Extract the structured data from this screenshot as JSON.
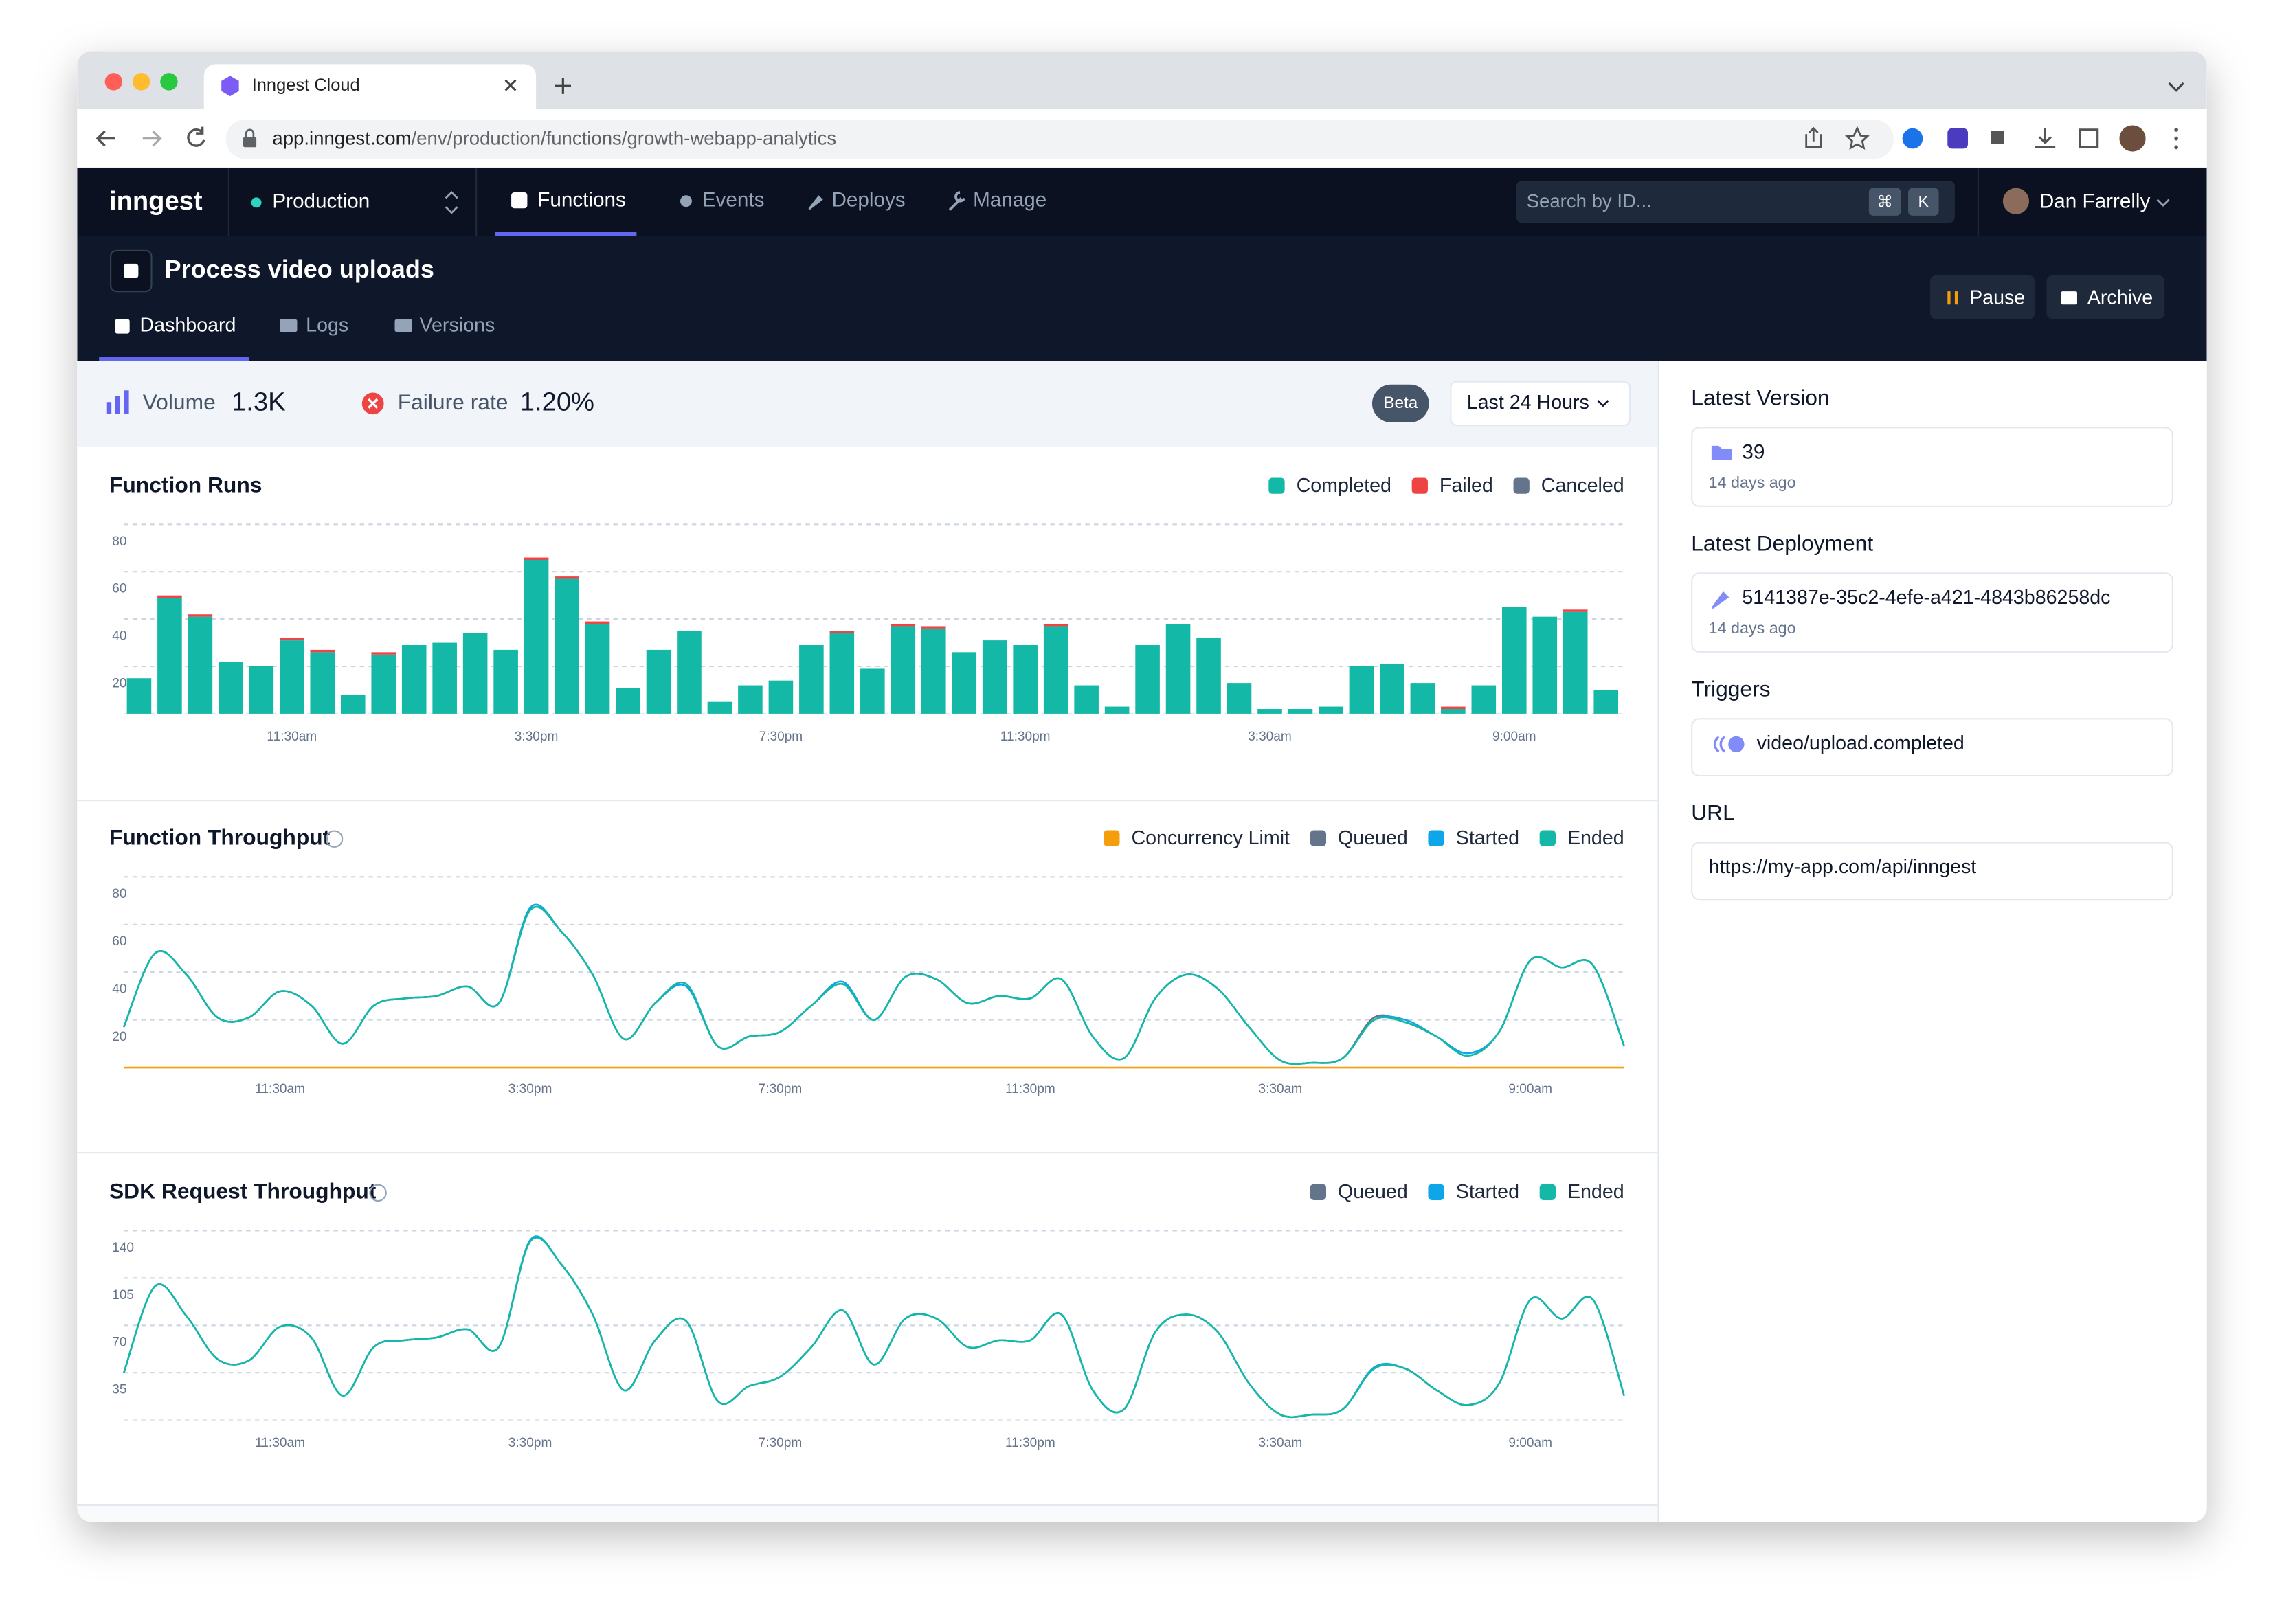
{
  "browser": {
    "tab_title": "Inngest Cloud",
    "url_host": "app.inngest.com",
    "url_path": "/env/production/functions/growth-webapp-analytics"
  },
  "nav": {
    "logo": "inngest",
    "environment": "Production",
    "items": [
      "Functions",
      "Events",
      "Deploys",
      "Manage"
    ],
    "search_placeholder": "Search by ID...",
    "shortcut": [
      "⌘",
      "K"
    ],
    "user": "Dan Farrelly"
  },
  "function": {
    "name": "Process video uploads",
    "tabs": [
      "Dashboard",
      "Logs",
      "Versions"
    ],
    "actions": [
      "Pause",
      "Archive"
    ]
  },
  "stats": {
    "volume_label": "Volume",
    "volume": "1.3K",
    "failure_label": "Failure rate",
    "failure_rate": "1.20%",
    "badge": "Beta",
    "range": "Last 24 Hours"
  },
  "sidebar": {
    "latest_version": {
      "title": "Latest Version",
      "value": "39",
      "time": "14 days ago"
    },
    "latest_deployment": {
      "title": "Latest Deployment",
      "value": "5141387e-35c2-4efe-a421-4843b86258dc",
      "time": "14 days ago"
    },
    "triggers": {
      "title": "Triggers",
      "value": "video/upload.completed"
    },
    "url": {
      "title": "URL",
      "value": "https://my-app.com/api/inngest"
    }
  },
  "chart_data": [
    {
      "type": "bar",
      "stacked": true,
      "title": "Function Runs",
      "legend": "top-right",
      "grid": true,
      "categories": [
        null,
        null,
        null,
        null,
        null,
        "11:30am",
        null,
        null,
        null,
        null,
        null,
        null,
        null,
        "3:30pm",
        null,
        null,
        null,
        null,
        null,
        null,
        null,
        "7:30pm",
        null,
        null,
        null,
        null,
        null,
        null,
        null,
        "11:30pm",
        null,
        null,
        null,
        null,
        null,
        null,
        null,
        "3:30am",
        null,
        null,
        null,
        null,
        null,
        null,
        null,
        "9:00am",
        null,
        null,
        null
      ],
      "series": [
        {
          "name": "Completed",
          "color": "#14b8a6",
          "values": [
            15,
            49,
            41,
            22,
            20,
            31,
            26,
            8,
            25,
            29,
            30,
            34,
            27,
            65,
            57,
            38,
            11,
            27,
            35,
            5,
            12,
            14,
            29,
            34,
            19,
            37,
            36,
            26,
            31,
            29,
            37,
            12,
            3,
            29,
            38,
            32,
            13,
            2,
            2,
            3,
            20,
            21,
            13,
            2,
            12,
            45,
            41,
            43,
            10
          ]
        },
        {
          "name": "Failed",
          "color": "#ef4444",
          "values": [
            0,
            1,
            1,
            0,
            0,
            1,
            1,
            0,
            1,
            0,
            0,
            0,
            0,
            1,
            1,
            1,
            0,
            0,
            0,
            0,
            0,
            0,
            0,
            1,
            0,
            1,
            1,
            0,
            0,
            0,
            1,
            0,
            0,
            0,
            0,
            0,
            0,
            0,
            0,
            0,
            0,
            0,
            0,
            1,
            0,
            0,
            0,
            1,
            0
          ]
        },
        {
          "name": "Canceled",
          "color": "#64748b",
          "values": [
            0,
            0,
            0,
            0,
            0,
            0,
            0,
            0,
            0,
            0,
            0,
            0,
            0,
            0,
            0,
            0,
            0,
            0,
            0,
            0,
            0,
            0,
            0,
            0,
            0,
            0,
            0,
            0,
            0,
            0,
            0,
            0,
            0,
            0,
            0,
            0,
            0,
            0,
            0,
            0,
            0,
            0,
            0,
            0,
            0,
            0,
            0,
            0,
            0
          ]
        }
      ],
      "ylim": [
        0,
        80
      ],
      "yticks": [
        20,
        40,
        60,
        80
      ]
    },
    {
      "type": "line",
      "title": "Function Throughput",
      "legend": "top-right",
      "grid": true,
      "categories": [
        null,
        null,
        null,
        null,
        null,
        "11:30am",
        null,
        null,
        null,
        null,
        null,
        null,
        null,
        "3:30pm",
        null,
        null,
        null,
        null,
        null,
        null,
        null,
        "7:30pm",
        null,
        null,
        null,
        null,
        null,
        null,
        null,
        "11:30pm",
        null,
        null,
        null,
        null,
        null,
        null,
        null,
        "3:30am",
        null,
        null,
        null,
        null,
        null,
        null,
        null,
        "9:00am",
        null,
        null,
        null
      ],
      "series": [
        {
          "name": "Concurrency Limit",
          "color": "#f59e0b",
          "values": [
            0,
            0,
            0,
            0,
            0,
            0,
            0,
            0,
            0,
            0,
            0,
            0,
            0,
            0,
            0,
            0,
            0,
            0,
            0,
            0,
            0,
            0,
            0,
            0,
            0,
            0,
            0,
            0,
            0,
            0,
            0,
            0,
            0,
            0,
            0,
            0,
            0,
            0,
            0,
            0,
            0,
            0,
            0,
            0,
            0,
            0,
            0,
            0,
            0
          ]
        },
        {
          "name": "Queued",
          "color": "#64748b",
          "values": [
            17,
            48,
            39,
            21,
            21,
            32,
            26,
            10,
            26,
            29,
            30,
            34,
            27,
            66,
            57,
            39,
            12,
            27,
            35,
            9,
            13,
            15,
            26,
            35,
            20,
            38,
            37,
            27,
            30,
            29,
            37,
            13,
            4,
            29,
            39,
            33,
            17,
            3,
            2,
            4,
            21,
            19,
            13,
            5,
            15,
            45,
            42,
            43,
            9
          ]
        },
        {
          "name": "Started",
          "color": "#0ea5e9",
          "values": [
            17,
            48,
            39,
            21,
            21,
            32,
            26,
            10,
            26,
            29,
            30,
            34,
            27,
            67,
            57,
            39,
            12,
            27,
            34,
            9,
            13,
            15,
            26,
            36,
            20,
            38,
            37,
            27,
            30,
            29,
            37,
            13,
            4,
            29,
            39,
            33,
            17,
            3,
            2,
            4,
            20,
            20,
            13,
            6,
            15,
            45,
            42,
            43,
            9
          ]
        },
        {
          "name": "Ended",
          "color": "#14b8a6",
          "values": [
            17,
            48,
            39,
            21,
            21,
            32,
            26,
            10,
            26,
            29,
            30,
            34,
            27,
            66,
            57,
            39,
            12,
            27,
            35,
            9,
            13,
            15,
            26,
            35,
            20,
            38,
            37,
            27,
            30,
            29,
            37,
            13,
            4,
            29,
            39,
            33,
            17,
            3,
            2,
            4,
            20,
            19,
            13,
            5,
            15,
            45,
            42,
            43,
            9
          ]
        }
      ],
      "ylim": [
        0,
        80
      ],
      "yticks": [
        20,
        40,
        60,
        80
      ]
    },
    {
      "type": "line",
      "title": "SDK Request Throughput",
      "legend": "top-right",
      "grid": true,
      "categories": [
        null,
        null,
        null,
        null,
        null,
        "11:30am",
        null,
        null,
        null,
        null,
        null,
        null,
        null,
        "3:30pm",
        null,
        null,
        null,
        null,
        null,
        null,
        null,
        "7:30pm",
        null,
        null,
        null,
        null,
        null,
        null,
        null,
        "11:30pm",
        null,
        null,
        null,
        null,
        null,
        null,
        null,
        "3:30am",
        null,
        null,
        null,
        null,
        null,
        null,
        null,
        "9:00am",
        null,
        null,
        null
      ],
      "series": [
        {
          "name": "Queued",
          "color": "#64748b",
          "values": [
            35,
            99,
            77,
            45,
            44,
            69,
            61,
            18,
            54,
            59,
            61,
            67,
            54,
            132,
            115,
            78,
            22,
            59,
            73,
            14,
            25,
            32,
            54,
            81,
            41,
            75,
            75,
            54,
            59,
            59,
            78,
            22,
            8,
            65,
            78,
            65,
            27,
            4,
            4,
            8,
            38,
            38,
            22,
            11,
            27,
            89,
            75,
            89,
            18
          ]
        },
        {
          "name": "Started",
          "color": "#0ea5e9",
          "values": [
            35,
            99,
            77,
            45,
            44,
            69,
            61,
            18,
            54,
            59,
            61,
            67,
            54,
            133,
            115,
            78,
            22,
            59,
            73,
            14,
            25,
            32,
            54,
            81,
            41,
            75,
            75,
            54,
            59,
            59,
            78,
            22,
            8,
            65,
            78,
            65,
            27,
            4,
            4,
            8,
            39,
            38,
            22,
            11,
            27,
            89,
            75,
            89,
            18
          ]
        },
        {
          "name": "Ended",
          "color": "#14b8a6",
          "values": [
            35,
            99,
            77,
            45,
            44,
            69,
            61,
            18,
            54,
            59,
            61,
            67,
            54,
            132,
            115,
            78,
            22,
            59,
            73,
            14,
            25,
            32,
            54,
            81,
            41,
            75,
            75,
            54,
            59,
            59,
            78,
            22,
            8,
            65,
            78,
            65,
            27,
            4,
            4,
            8,
            38,
            38,
            22,
            11,
            27,
            89,
            75,
            89,
            18
          ]
        }
      ],
      "ylim": [
        0,
        140
      ],
      "yticks": [
        35,
        70,
        105,
        140
      ]
    }
  ]
}
